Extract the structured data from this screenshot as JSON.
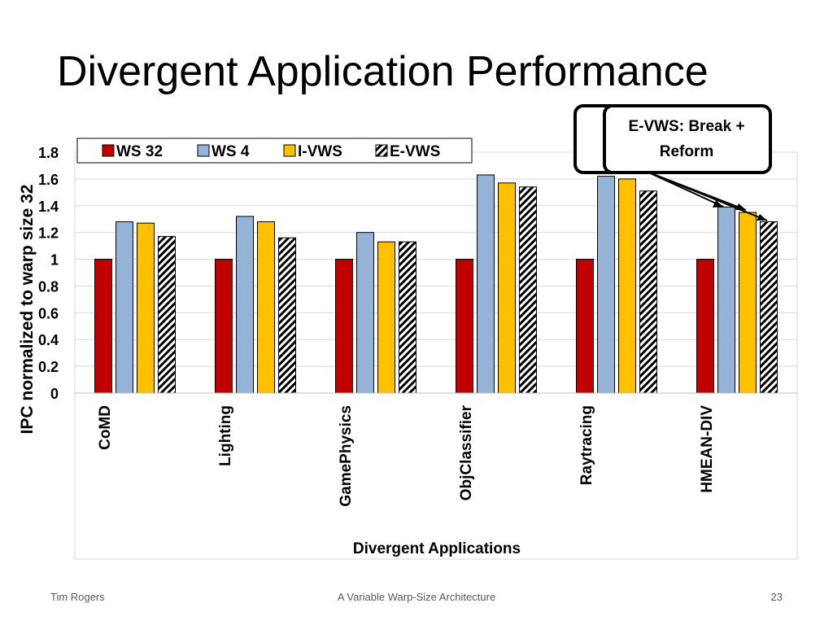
{
  "slide": {
    "title": "Divergent Application Performance",
    "footer_left": "Tim Rogers",
    "footer_center": "A Variable Warp-Size Architecture",
    "footer_right": "23"
  },
  "callout": {
    "line1": "E-VWS: Break +",
    "line2": "Reform"
  },
  "colors": {
    "ws32": "#C00000",
    "ws4": "#95B3D7",
    "ivws": "#FFC000",
    "evws": "hatched black/white"
  },
  "chart_data": {
    "type": "bar",
    "categories": [
      "CoMD",
      "Lighting",
      "GamePhysics",
      "ObjClassifier",
      "Raytracing",
      "HMEAN-DIV"
    ],
    "series": [
      {
        "name": "WS 32",
        "values": [
          1.0,
          1.0,
          1.0,
          1.0,
          1.0,
          1.0
        ]
      },
      {
        "name": "WS 4",
        "values": [
          1.28,
          1.32,
          1.2,
          1.63,
          1.62,
          1.39
        ]
      },
      {
        "name": "I-VWS",
        "values": [
          1.27,
          1.28,
          1.13,
          1.57,
          1.6,
          1.35
        ]
      },
      {
        "name": "E-VWS",
        "values": [
          1.17,
          1.16,
          1.13,
          1.54,
          1.51,
          1.28
        ]
      }
    ],
    "xlabel": "Divergent Applications",
    "ylabel": "IPC normalized to warp size 32",
    "ylim": [
      0,
      1.8
    ],
    "yticks": [
      "0",
      "0.2",
      "0.4",
      "0.6",
      "0.8",
      "1",
      "1.2",
      "1.4",
      "1.6",
      "1.8"
    ],
    "grid": true,
    "legend": "top"
  }
}
